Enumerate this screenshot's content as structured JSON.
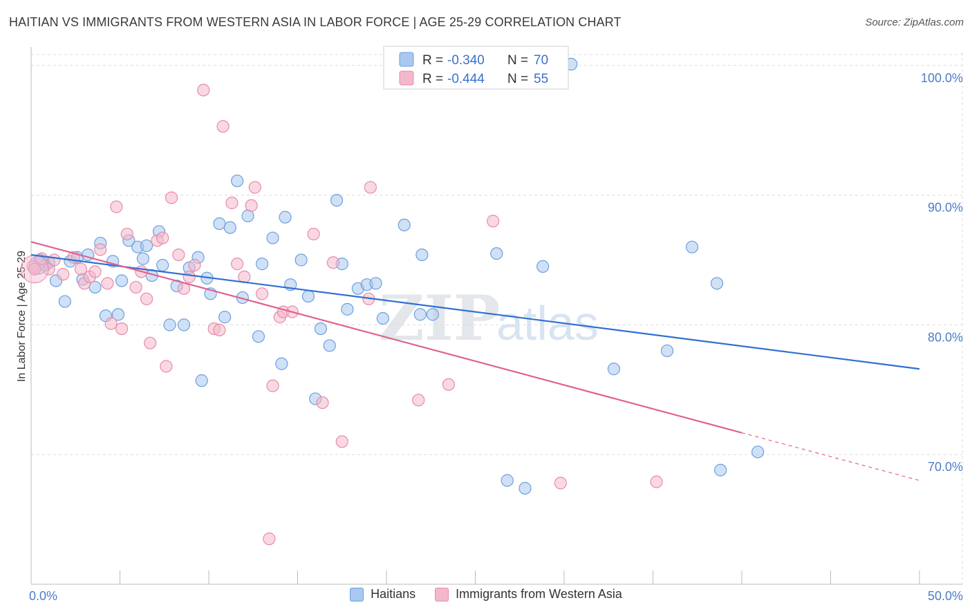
{
  "title": "HAITIAN VS IMMIGRANTS FROM WESTERN ASIA IN LABOR FORCE | AGE 25-29 CORRELATION CHART",
  "source": "Source: ZipAtlas.com",
  "watermark": {
    "zip": "ZIP",
    "atlas": "atlas"
  },
  "legend": {
    "r_label": "R =",
    "n_label": "N =",
    "series": [
      {
        "r": "-0.340",
        "n": "70"
      },
      {
        "r": "-0.444",
        "n": "55"
      }
    ]
  },
  "bottom_legend": [
    "Haitians",
    "Immigrants from Western Asia"
  ],
  "colors": {
    "blue_fill": "#a9c8ef",
    "blue_stroke": "#6a9fdf",
    "blue_line": "#2f6fd1",
    "pink_fill": "#f4b8cb",
    "pink_stroke": "#e88aa8",
    "pink_line": "#e0628d",
    "tick_text": "#4a7cc7",
    "grid": "#dcdcdc"
  },
  "chart_data": {
    "type": "scatter",
    "title": "HAITIAN VS IMMIGRANTS FROM WESTERN ASIA IN LABOR FORCE | AGE 25-29 CORRELATION CHART",
    "xlabel": "",
    "ylabel": "In Labor Force | Age 25-29",
    "xlim": [
      0,
      50
    ],
    "ylim": [
      60,
      101
    ],
    "x_tick_labels": [
      "0.0%",
      "50.0%"
    ],
    "y_ticks": [
      70,
      80,
      90,
      100
    ],
    "y_tick_labels": [
      "70.0%",
      "80.0%",
      "90.0%",
      "100.0%"
    ],
    "grid": true,
    "legend_position": "top-center",
    "series": [
      {
        "name": "Haitians",
        "color": "#a9c8ef",
        "r": -0.34,
        "n": 70,
        "trend": {
          "x": [
            0,
            50
          ],
          "y": [
            85.4,
            76.6
          ],
          "dashed_from_x": null
        },
        "points": [
          [
            0.2,
            84.3
          ],
          [
            0.5,
            85.0
          ],
          [
            0.8,
            84.6
          ],
          [
            1.0,
            84.8
          ],
          [
            1.4,
            83.4
          ],
          [
            1.9,
            81.8
          ],
          [
            2.2,
            84.9
          ],
          [
            2.6,
            85.2
          ],
          [
            2.9,
            83.5
          ],
          [
            3.2,
            85.4
          ],
          [
            3.6,
            82.9
          ],
          [
            3.9,
            86.3
          ],
          [
            4.2,
            80.7
          ],
          [
            4.6,
            84.9
          ],
          [
            4.9,
            80.8
          ],
          [
            5.1,
            83.4
          ],
          [
            5.5,
            86.5
          ],
          [
            6.0,
            86.0
          ],
          [
            6.3,
            85.1
          ],
          [
            6.5,
            86.1
          ],
          [
            6.8,
            83.8
          ],
          [
            7.2,
            87.2
          ],
          [
            7.4,
            84.6
          ],
          [
            7.8,
            80.0
          ],
          [
            8.2,
            83.0
          ],
          [
            8.6,
            80.0
          ],
          [
            8.9,
            84.4
          ],
          [
            9.4,
            85.2
          ],
          [
            9.6,
            75.7
          ],
          [
            9.9,
            83.6
          ],
          [
            10.1,
            82.4
          ],
          [
            10.6,
            87.8
          ],
          [
            10.9,
            80.6
          ],
          [
            11.2,
            87.5
          ],
          [
            11.6,
            91.1
          ],
          [
            11.9,
            82.1
          ],
          [
            12.2,
            88.4
          ],
          [
            12.8,
            79.1
          ],
          [
            13.0,
            84.7
          ],
          [
            13.6,
            86.7
          ],
          [
            14.1,
            77.0
          ],
          [
            14.3,
            88.3
          ],
          [
            14.6,
            83.1
          ],
          [
            15.2,
            85.0
          ],
          [
            15.6,
            82.2
          ],
          [
            16.0,
            74.3
          ],
          [
            16.3,
            79.7
          ],
          [
            16.8,
            78.4
          ],
          [
            17.2,
            89.6
          ],
          [
            17.5,
            84.7
          ],
          [
            17.8,
            81.2
          ],
          [
            18.4,
            82.8
          ],
          [
            18.9,
            83.1
          ],
          [
            19.4,
            83.2
          ],
          [
            19.8,
            80.5
          ],
          [
            21.0,
            87.7
          ],
          [
            21.9,
            80.8
          ],
          [
            22.0,
            85.4
          ],
          [
            22.6,
            80.8
          ],
          [
            26.2,
            85.5
          ],
          [
            26.8,
            68.0
          ],
          [
            27.8,
            67.4
          ],
          [
            28.8,
            84.5
          ],
          [
            30.4,
            100.1
          ],
          [
            32.8,
            76.6
          ],
          [
            35.8,
            78.0
          ],
          [
            37.2,
            86.0
          ],
          [
            38.6,
            83.2
          ],
          [
            38.8,
            68.8
          ],
          [
            40.9,
            70.2
          ]
        ]
      },
      {
        "name": "Immigrants from Western Asia",
        "color": "#f4b8cb",
        "r": -0.444,
        "n": 55,
        "trend": {
          "x": [
            0,
            50
          ],
          "y": [
            86.4,
            68.0
          ],
          "dashed_from_x": 40.0
        },
        "points": [
          [
            0.1,
            84.5
          ],
          [
            0.6,
            85.1
          ],
          [
            1.0,
            84.3
          ],
          [
            1.3,
            85.0
          ],
          [
            1.8,
            83.9
          ],
          [
            2.4,
            85.2
          ],
          [
            2.8,
            84.3
          ],
          [
            3.0,
            83.2
          ],
          [
            3.3,
            83.7
          ],
          [
            3.6,
            84.1
          ],
          [
            3.9,
            85.8
          ],
          [
            4.3,
            83.2
          ],
          [
            4.5,
            80.1
          ],
          [
            4.8,
            89.1
          ],
          [
            5.1,
            79.7
          ],
          [
            5.4,
            87.0
          ],
          [
            5.9,
            82.9
          ],
          [
            6.2,
            84.1
          ],
          [
            6.5,
            82.0
          ],
          [
            6.7,
            78.6
          ],
          [
            7.1,
            86.5
          ],
          [
            7.4,
            86.7
          ],
          [
            7.6,
            76.8
          ],
          [
            7.9,
            89.8
          ],
          [
            8.3,
            85.4
          ],
          [
            8.6,
            82.8
          ],
          [
            8.9,
            83.7
          ],
          [
            9.2,
            84.6
          ],
          [
            9.7,
            98.1
          ],
          [
            10.3,
            79.7
          ],
          [
            10.6,
            79.6
          ],
          [
            10.8,
            95.3
          ],
          [
            11.3,
            89.4
          ],
          [
            11.6,
            84.7
          ],
          [
            12.0,
            83.7
          ],
          [
            12.4,
            89.2
          ],
          [
            12.6,
            90.6
          ],
          [
            13.0,
            82.4
          ],
          [
            13.4,
            63.5
          ],
          [
            13.6,
            75.3
          ],
          [
            14.0,
            80.6
          ],
          [
            14.2,
            81.0
          ],
          [
            14.7,
            81.0
          ],
          [
            15.9,
            87.0
          ],
          [
            16.4,
            74.0
          ],
          [
            17.0,
            84.8
          ],
          [
            17.5,
            71.0
          ],
          [
            19.1,
            90.6
          ],
          [
            19.0,
            82.0
          ],
          [
            21.8,
            74.2
          ],
          [
            23.5,
            75.4
          ],
          [
            26.0,
            88.0
          ],
          [
            29.8,
            67.8
          ],
          [
            35.2,
            67.9
          ],
          [
            0.2,
            84.3
          ]
        ]
      }
    ]
  }
}
